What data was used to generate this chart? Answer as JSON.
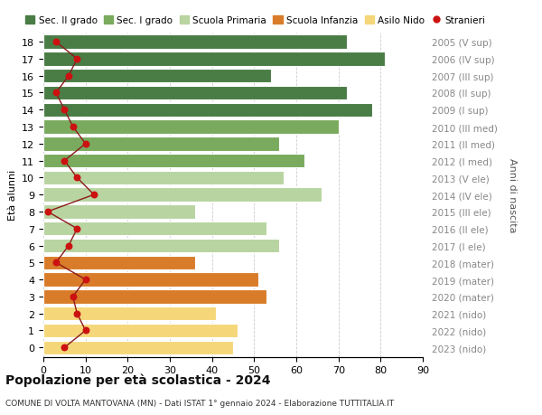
{
  "ages": [
    18,
    17,
    16,
    15,
    14,
    13,
    12,
    11,
    10,
    9,
    8,
    7,
    6,
    5,
    4,
    3,
    2,
    1,
    0
  ],
  "anni_nascita_labels": [
    "2005 (V sup)",
    "2006 (IV sup)",
    "2007 (III sup)",
    "2008 (II sup)",
    "2009 (I sup)",
    "2010 (III med)",
    "2011 (II med)",
    "2012 (I med)",
    "2013 (V ele)",
    "2014 (IV ele)",
    "2015 (III ele)",
    "2016 (II ele)",
    "2017 (I ele)",
    "2018 (mater)",
    "2019 (mater)",
    "2020 (mater)",
    "2021 (nido)",
    "2022 (nido)",
    "2023 (nido)"
  ],
  "bar_values": [
    72,
    81,
    54,
    72,
    78,
    70,
    56,
    62,
    57,
    66,
    36,
    53,
    56,
    36,
    51,
    53,
    41,
    46,
    45
  ],
  "bar_colors": [
    "#4a7c45",
    "#4a7c45",
    "#4a7c45",
    "#4a7c45",
    "#4a7c45",
    "#7aaa5e",
    "#7aaa5e",
    "#7aaa5e",
    "#b8d4a0",
    "#b8d4a0",
    "#b8d4a0",
    "#b8d4a0",
    "#b8d4a0",
    "#d97c2a",
    "#d97c2a",
    "#d97c2a",
    "#f5d77a",
    "#f5d77a",
    "#f5d77a"
  ],
  "stranieri_values": [
    3,
    8,
    6,
    3,
    5,
    7,
    10,
    5,
    8,
    12,
    1,
    8,
    6,
    3,
    10,
    7,
    8,
    10,
    5
  ],
  "xlim": [
    0,
    90
  ],
  "xticks": [
    0,
    10,
    20,
    30,
    40,
    50,
    60,
    70,
    80,
    90
  ],
  "ylabel": "Età alunni",
  "ylabel2": "Anni di nascita",
  "title1": "Popolazione per età scolastica - 2024",
  "title2": "COMUNE DI VOLTA MANTOVANA (MN) - Dati ISTAT 1° gennaio 2024 - Elaborazione TUTTITALIA.IT",
  "legend_labels": [
    "Sec. II grado",
    "Sec. I grado",
    "Scuola Primaria",
    "Scuola Infanzia",
    "Asilo Nido",
    "Stranieri"
  ],
  "legend_colors": [
    "#4a7c45",
    "#7aaa5e",
    "#b8d4a0",
    "#d97c2a",
    "#f5d77a",
    "#cc1111"
  ],
  "bar_height": 0.82,
  "bg_color": "#ffffff",
  "grid_color": "#cccccc",
  "stranieri_line_color": "#8b1a1a",
  "stranieri_dot_color": "#cc1111",
  "right_label_color": "#888888"
}
